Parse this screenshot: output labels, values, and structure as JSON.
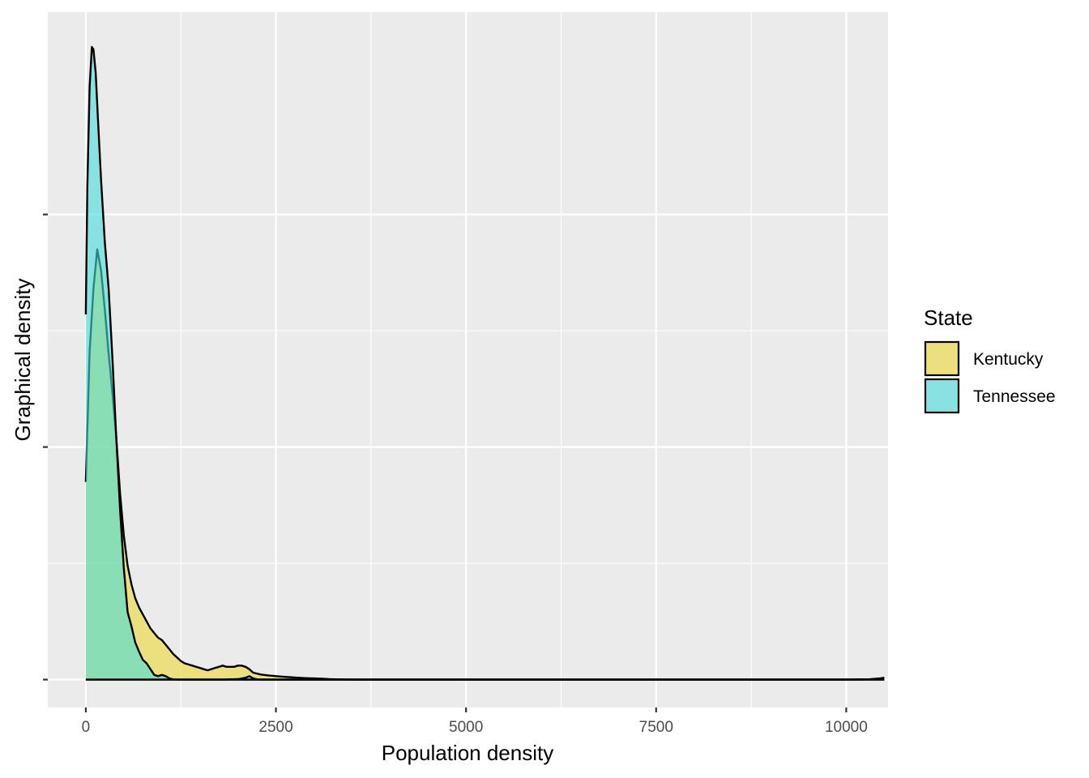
{
  "chart_data": {
    "type": "area",
    "subtype": "density",
    "title": "",
    "xlabel": "Population density",
    "ylabel": "Graphical density",
    "xlim": [
      -500,
      10550
    ],
    "ylim": [
      -0.00012,
      0.00287
    ],
    "x_ticks": [
      0,
      2500,
      5000,
      7500,
      10000
    ],
    "x_tick_labels": [
      "0",
      "2500",
      "5000",
      "7500",
      "10000"
    ],
    "y_ticks": [
      0,
      0.001,
      0.002
    ],
    "y_tick_labels": [
      "",
      "",
      ""
    ],
    "grid": true,
    "legend": {
      "title": "State",
      "position": "right",
      "entries": [
        {
          "label": "Kentucky",
          "color": "#EBD834"
        },
        {
          "label": "Tennessee",
          "color": "#48DCDC"
        }
      ]
    },
    "fill_opacity": 0.6,
    "series": [
      {
        "name": "Kentucky",
        "color": "#EBD834",
        "x": [
          0,
          50,
          100,
          150,
          200,
          250,
          300,
          350,
          400,
          450,
          500,
          550,
          600,
          650,
          700,
          750,
          800,
          850,
          900,
          950,
          1000,
          1050,
          1100,
          1150,
          1200,
          1250,
          1300,
          1350,
          1400,
          1450,
          1500,
          1550,
          1600,
          1650,
          1700,
          1750,
          1800,
          1850,
          1900,
          1950,
          2000,
          2050,
          2100,
          2150,
          2200,
          2300,
          2400,
          2500,
          2600,
          2700,
          2800,
          2900,
          3000,
          3100,
          3200,
          3300,
          3500,
          4000,
          5000,
          7500,
          10000,
          10300,
          10450,
          10500
        ],
        "y": [
          0.00085,
          0.00141,
          0.00168,
          0.00185,
          0.00176,
          0.00159,
          0.0014,
          0.00123,
          0.00104,
          0.0008,
          0.00062,
          0.00049,
          0.00041,
          0.00035,
          0.00031,
          0.00028,
          0.00025,
          0.00022,
          0.0002,
          0.00018,
          0.00017,
          0.00015,
          0.00013,
          0.00011,
          9.5e-05,
          8e-05,
          7e-05,
          6.5e-05,
          6e-05,
          5.5e-05,
          5e-05,
          4.5e-05,
          4e-05,
          4.5e-05,
          5e-05,
          5.5e-05,
          6e-05,
          5.5e-05,
          5.5e-05,
          5.5e-05,
          6e-05,
          6e-05,
          5.5e-05,
          4.5e-05,
          3e-05,
          2.2e-05,
          1.8e-05,
          1.5e-05,
          1.2e-05,
          1e-05,
          8e-06,
          6e-06,
          5e-06,
          4e-06,
          2e-06,
          1e-06,
          0,
          0,
          0,
          0,
          0,
          1e-06,
          5e-06,
          8e-06
        ]
      },
      {
        "name": "Tennessee",
        "color": "#48DCDC",
        "x": [
          0,
          20,
          50,
          80,
          100,
          130,
          160,
          200,
          250,
          300,
          350,
          400,
          450,
          500,
          550,
          600,
          650,
          700,
          750,
          800,
          850,
          900,
          950,
          1000,
          1050,
          1100,
          1150,
          1200,
          1300,
          1500,
          1800,
          2000,
          2100,
          2150,
          2200,
          2250,
          2300,
          2500,
          3000,
          5000,
          7500,
          10000,
          10300,
          10450,
          10500
        ],
        "y": [
          0.00157,
          0.00212,
          0.00255,
          0.00272,
          0.00271,
          0.00261,
          0.00241,
          0.00215,
          0.00188,
          0.00168,
          0.00138,
          0.00104,
          0.00073,
          0.00048,
          0.00029,
          0.00023,
          0.00016,
          0.00012,
          8.5e-05,
          7e-05,
          4.5e-05,
          2e-05,
          1.5e-05,
          2e-05,
          1.5e-05,
          5e-06,
          1e-06,
          0,
          0,
          0,
          0,
          2e-06,
          8e-06,
          1.5e-05,
          5e-06,
          1e-06,
          0,
          0,
          0,
          0,
          0,
          0,
          1e-06,
          5e-06,
          8e-06
        ]
      }
    ]
  }
}
